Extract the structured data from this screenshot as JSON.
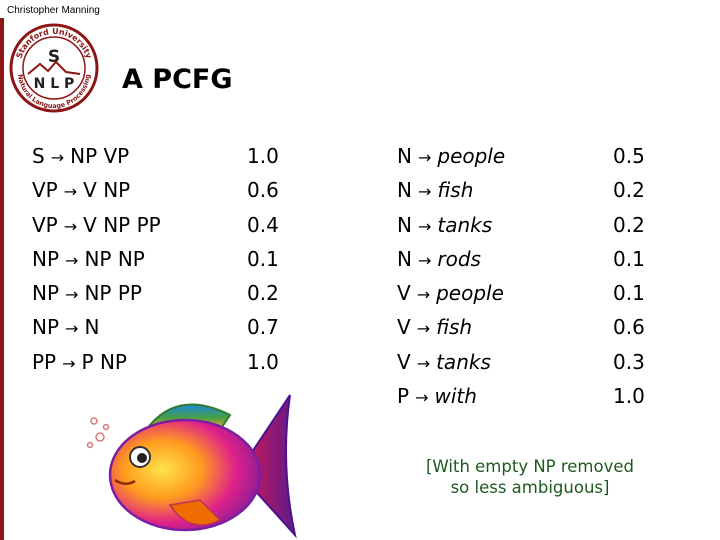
{
  "header": {
    "author": "Christopher Manning",
    "title": "A PCFG",
    "seal": {
      "top_text": "Stanford University",
      "bottom_text": "Natural Language Processing",
      "center_letter": "S",
      "center_text": "N L P"
    }
  },
  "grammar": {
    "arrow": "→",
    "left_rules": [
      {
        "lhs": "S",
        "rhs": "NP VP",
        "prob": "1.0"
      },
      {
        "lhs": "VP",
        "rhs": "V NP",
        "prob": "0.6"
      },
      {
        "lhs": "VP",
        "rhs": "V NP PP",
        "prob": "0.4"
      },
      {
        "lhs": "NP",
        "rhs": "NP NP",
        "prob": "0.1"
      },
      {
        "lhs": "NP",
        "rhs": "NP PP",
        "prob": "0.2"
      },
      {
        "lhs": "NP",
        "rhs": "N",
        "prob": "0.7"
      },
      {
        "lhs": "PP",
        "rhs": "P NP",
        "prob": "1.0"
      }
    ],
    "right_rules": [
      {
        "lhs": "N",
        "rhs": "people",
        "prob": "0.5"
      },
      {
        "lhs": "N",
        "rhs": "fish",
        "prob": "0.2"
      },
      {
        "lhs": "N",
        "rhs": "tanks",
        "prob": "0.2"
      },
      {
        "lhs": "N",
        "rhs": "rods",
        "prob": "0.1"
      },
      {
        "lhs": "V",
        "rhs": "people",
        "prob": "0.1"
      },
      {
        "lhs": "V",
        "rhs": "fish",
        "prob": "0.6"
      },
      {
        "lhs": "V",
        "rhs": "tanks",
        "prob": "0.3"
      },
      {
        "lhs": "P",
        "rhs": "with",
        "prob": "1.0"
      }
    ]
  },
  "note": {
    "line1": "[With empty NP removed",
    "line2": "so less ambiguous]"
  },
  "colors": {
    "accent": "#8c1515",
    "note": "#1e5a1e"
  }
}
